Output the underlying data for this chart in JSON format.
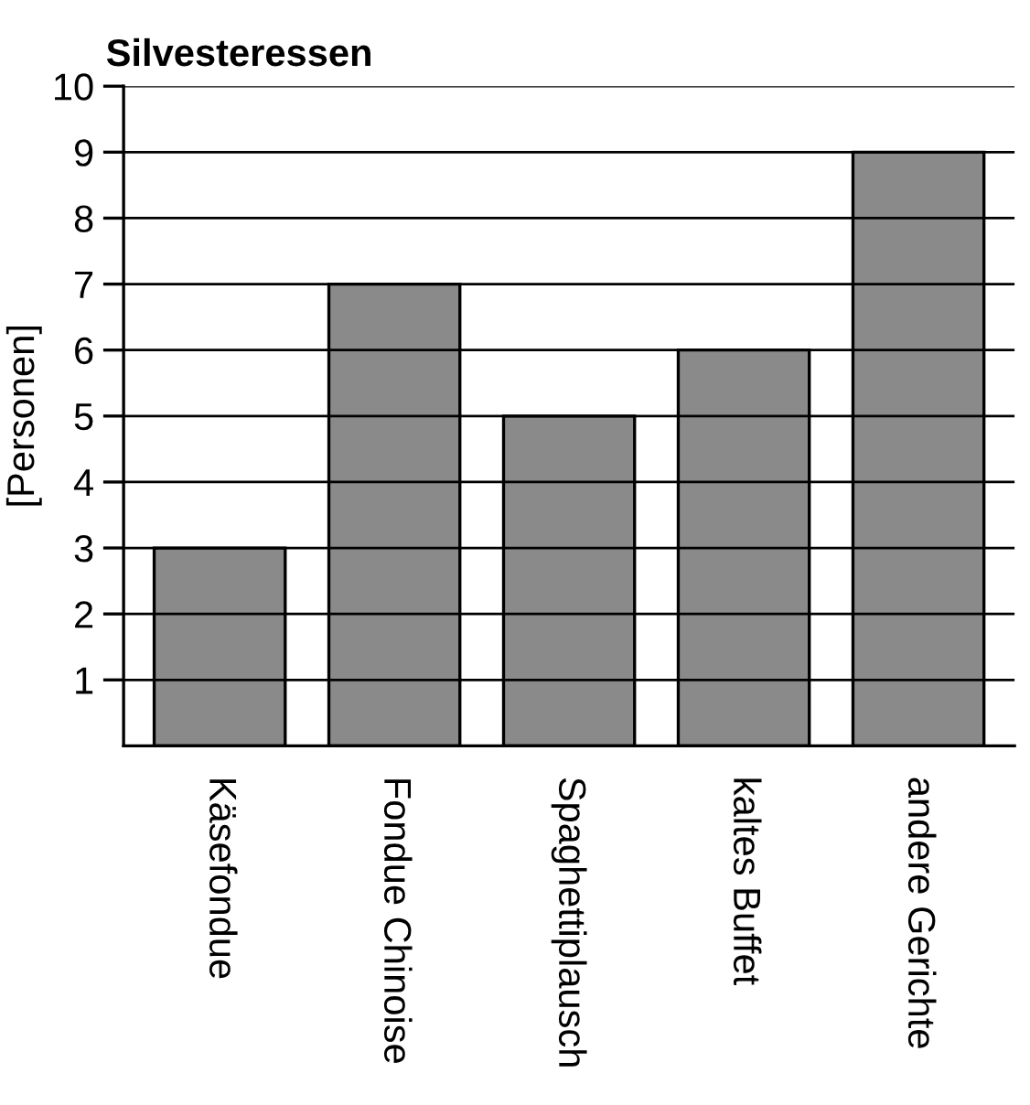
{
  "chart_data": {
    "type": "bar",
    "title": "Silvesteressen",
    "ylabel": "[Personen]",
    "categories": [
      "Käsefondue",
      "Fondue Chinoise",
      "Spaghettiplausch",
      "kaltes Buffet",
      "andere Gerichte"
    ],
    "values": [
      3,
      7,
      5,
      6,
      9
    ],
    "color": "#8a8a8a",
    "ylim": [
      0,
      10
    ],
    "yticks": [
      1,
      2,
      3,
      4,
      5,
      6,
      7,
      8,
      9,
      10
    ],
    "grid": "y"
  }
}
